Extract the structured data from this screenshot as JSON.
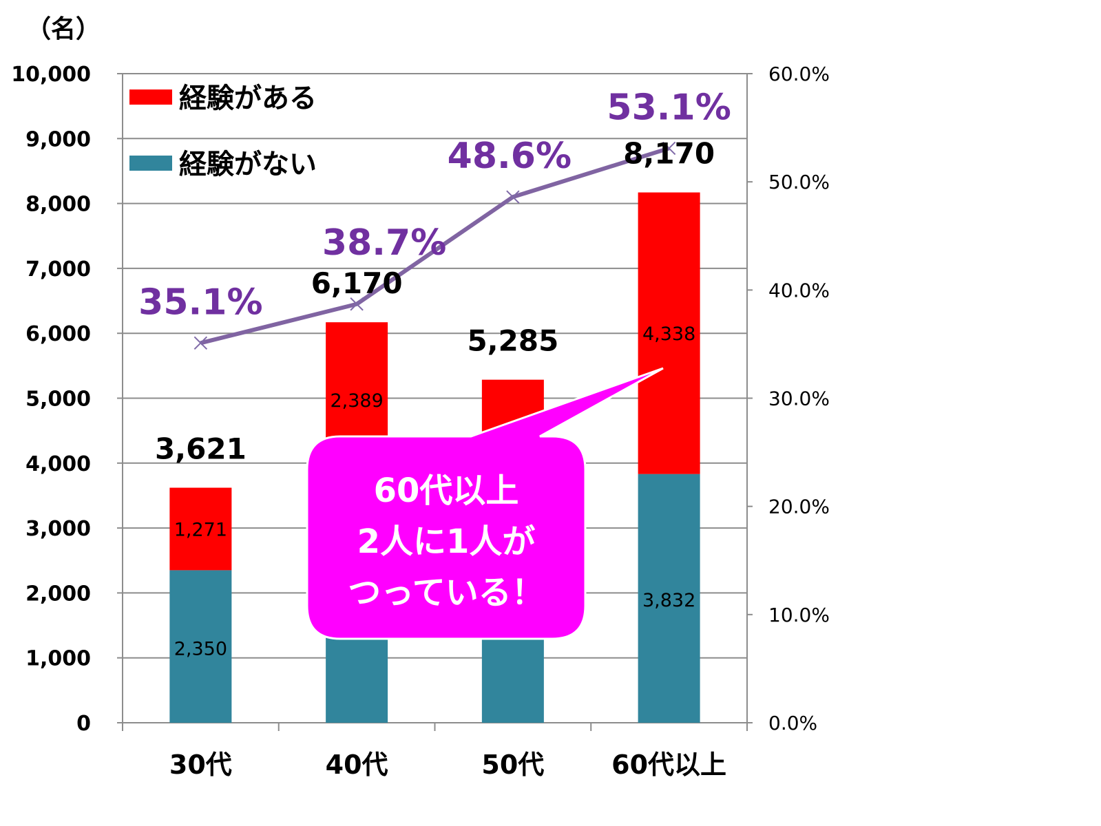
{
  "chart_data": {
    "type": "bar",
    "stacked": true,
    "y_unit_label": "（名）",
    "categories": [
      "30代",
      "40代",
      "50代",
      "60代以上"
    ],
    "series": [
      {
        "name": "経験がない",
        "color": "#31859c",
        "values": [
          2350,
          3781,
          2716,
          3832
        ],
        "labels": [
          "2,350",
          "",
          "",
          "3,832"
        ]
      },
      {
        "name": "経験がある",
        "color": "#ff0000",
        "values": [
          1271,
          2389,
          2569,
          4338
        ],
        "labels": [
          "1,271",
          "2,389",
          "",
          "4,338"
        ]
      }
    ],
    "totals": [
      3621,
      6170,
      5285,
      8170
    ],
    "total_labels": [
      "3,621",
      "6,170",
      "5,285",
      "8,170"
    ],
    "line_series": {
      "axis": "right",
      "color": "#8064a2",
      "label_color": "#7030a0",
      "values": [
        35.1,
        38.7,
        48.6,
        53.1
      ],
      "labels": [
        "35.1%",
        "38.7%",
        "48.6%",
        "53.1%"
      ],
      "marker": "x"
    },
    "ylim": [
      0,
      10000
    ],
    "y_ticks": [
      "0",
      "1,000",
      "2,000",
      "3,000",
      "4,000",
      "5,000",
      "6,000",
      "7,000",
      "8,000",
      "9,000",
      "10,000"
    ],
    "y2lim": [
      0,
      60
    ],
    "y2_ticks": [
      "0.0%",
      "10.0%",
      "20.0%",
      "30.0%",
      "40.0%",
      "50.0%",
      "60.0%"
    ],
    "grid": true,
    "legend_position": "top-left",
    "callout": {
      "lines": [
        "60代以上",
        "2人に1人が",
        "つっている！"
      ],
      "color": "#ff00ff",
      "points_to": "60代以上"
    }
  }
}
